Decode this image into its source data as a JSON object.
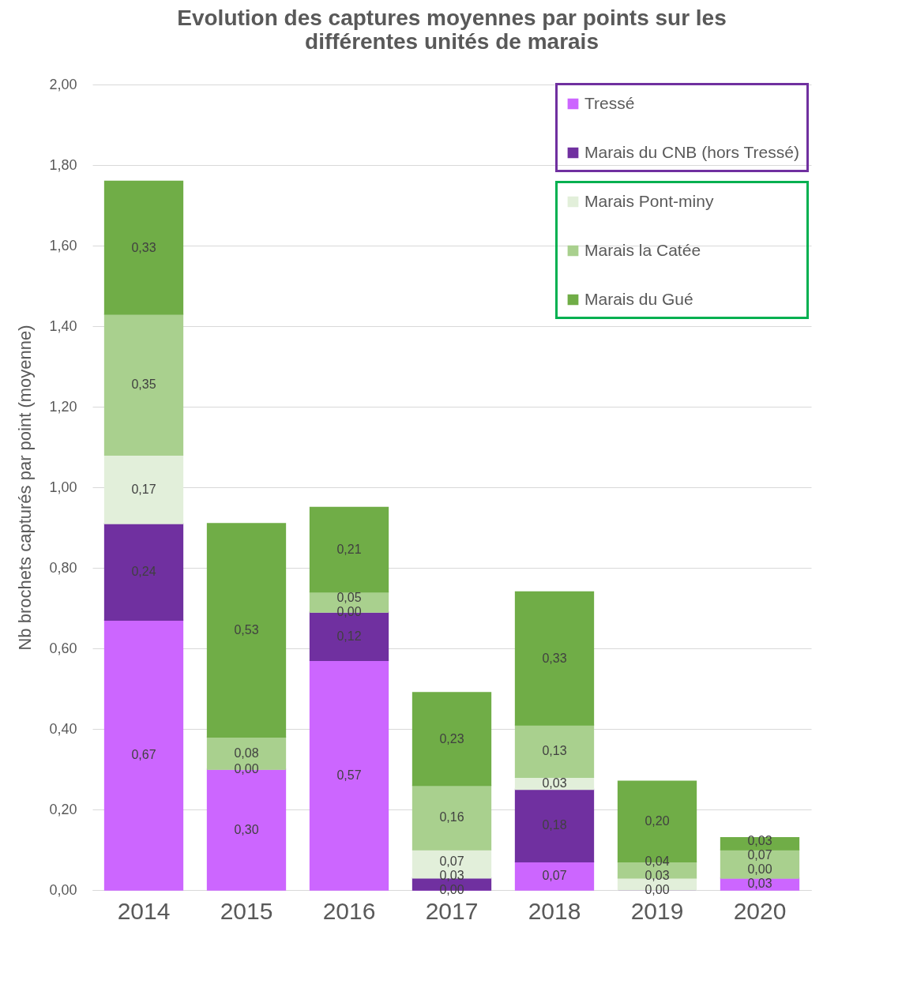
{
  "chart_data": {
    "type": "bar",
    "stacked": true,
    "title": "Evolution des captures moyennes par points sur les différentes unités de marais",
    "ylabel": "Nb brochets capturés par point (moyenne)",
    "categories": [
      "2014",
      "2015",
      "2016",
      "2017",
      "2018",
      "2019",
      "2020"
    ],
    "series": [
      {
        "name": "Tressé",
        "color": "#cc66ff",
        "values": [
          0.67,
          0.3,
          0.57,
          0.0,
          0.07,
          0.0,
          0.03
        ],
        "value_labels": [
          "0,67",
          "0,30",
          "0,57",
          "0,00",
          "0,07",
          "0,00",
          "0,03"
        ]
      },
      {
        "name": "Marais du CNB (hors Tressé)",
        "color": "#7030a0",
        "values": [
          0.24,
          0.0,
          0.12,
          0.03,
          0.18,
          0.0,
          0.0
        ],
        "value_labels": [
          "0,24",
          "0,00",
          "0,12",
          "0,03",
          "0,18",
          null,
          "0,00"
        ]
      },
      {
        "name": "Marais Pont-miny",
        "color": "#e2efda",
        "values": [
          0.17,
          0.0,
          0.0,
          0.07,
          0.03,
          0.03,
          0.0
        ],
        "value_labels": [
          "0,17",
          null,
          "0,00",
          "0,07",
          "0,03",
          "0,03",
          null
        ]
      },
      {
        "name": "Marais la Catée",
        "color": "#a9d08e",
        "values": [
          0.35,
          0.08,
          0.05,
          0.16,
          0.13,
          0.04,
          0.07
        ],
        "value_labels": [
          "0,35",
          "0,08",
          "0,05",
          "0,16",
          "0,13",
          "0,04",
          "0,07"
        ]
      },
      {
        "name": "Marais du Gué",
        "color": "#70ad47",
        "values": [
          0.33,
          0.53,
          0.21,
          0.23,
          0.33,
          0.2,
          0.03
        ],
        "value_labels": [
          "0,33",
          "0,53",
          "0,21",
          "0,23",
          "0,33",
          "0,20",
          "0,03"
        ]
      }
    ],
    "ylim": [
      0,
      2
    ],
    "yticks": [
      {
        "value": 0,
        "label": "0,00"
      },
      {
        "value": 0.2,
        "label": "0,20"
      },
      {
        "value": 0.4,
        "label": "0,40"
      },
      {
        "value": 0.6,
        "label": "0,60"
      },
      {
        "value": 0.8,
        "label": "0,80"
      },
      {
        "value": 1,
        "label": "1,00"
      },
      {
        "value": 1.2,
        "label": "1,20"
      },
      {
        "value": 1.4,
        "label": "1,40"
      },
      {
        "value": 1.6,
        "label": "1,60"
      },
      {
        "value": 1.8,
        "label": "1,80"
      },
      {
        "value": 2,
        "label": "2,00"
      }
    ],
    "grid": "y",
    "legend": "top right"
  }
}
